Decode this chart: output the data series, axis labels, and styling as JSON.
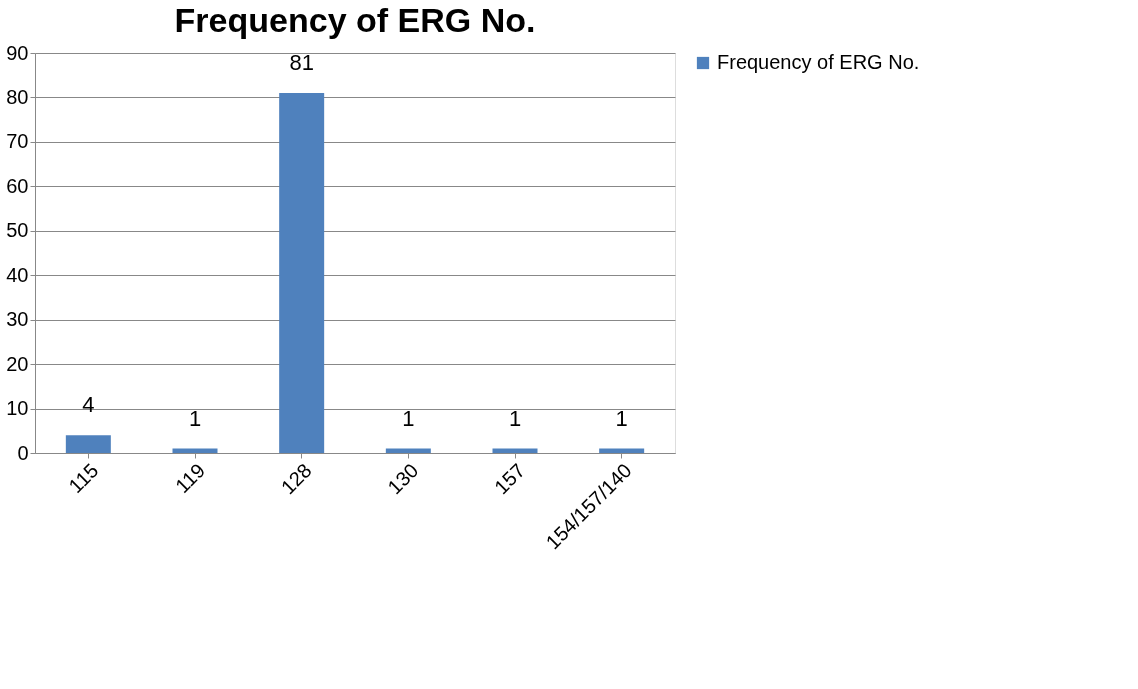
{
  "chart_data": {
    "type": "bar",
    "title": "Frequency of ERG No.",
    "categories": [
      "115",
      "119",
      "128",
      "130",
      "157",
      "154/157/140"
    ],
    "series": [
      {
        "name": "Frequency of ERG No.",
        "color": "#4f81bd",
        "values": [
          4,
          1,
          81,
          1,
          1,
          1
        ]
      }
    ],
    "ylim": [
      0,
      90
    ],
    "yticks": [
      0,
      10,
      20,
      30,
      40,
      50,
      60,
      70,
      80,
      90
    ],
    "grid": "y",
    "legend": "right",
    "data_labels": true
  }
}
